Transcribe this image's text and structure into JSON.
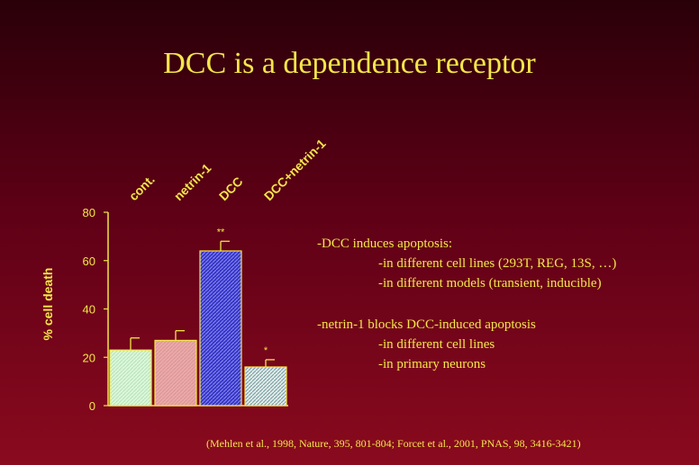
{
  "slide": {
    "title": "DCC is a dependence receptor",
    "bullets": [
      {
        "main": "-DCC induces apoptosis:",
        "subs": [
          "-in different cell lines (293T, REG, 13S, …)",
          "-in different models (transient, inducible)"
        ]
      },
      {
        "main": "-netrin-1 blocks DCC-induced apoptosis",
        "subs": [
          "-in different cell lines",
          "-in primary neurons"
        ]
      }
    ],
    "citation": "(Mehlen et al., 1998, Nature, 395, 801-804; Forcet et al., 2001, PNAS, 98, 3416-3421)"
  },
  "chart_data": {
    "type": "bar",
    "categories": [
      "cont.",
      "netrin-1",
      "DCC",
      "DCC+netrin-1"
    ],
    "values": [
      23,
      27,
      64,
      16
    ],
    "errors": [
      5,
      4,
      4,
      3
    ],
    "significance": [
      "",
      "",
      "**",
      "*"
    ],
    "ylabel": "% cell death",
    "ylim": [
      0,
      80
    ],
    "yticks": [
      0,
      20,
      40,
      60,
      80
    ],
    "grid": false,
    "colors": {
      "bars": [
        "#d6f5d6",
        "#e9a9a9",
        "#3f3fd0",
        "#ccdede"
      ],
      "axis": "#f4e64a",
      "bar_outline": "#f4e64a"
    }
  }
}
